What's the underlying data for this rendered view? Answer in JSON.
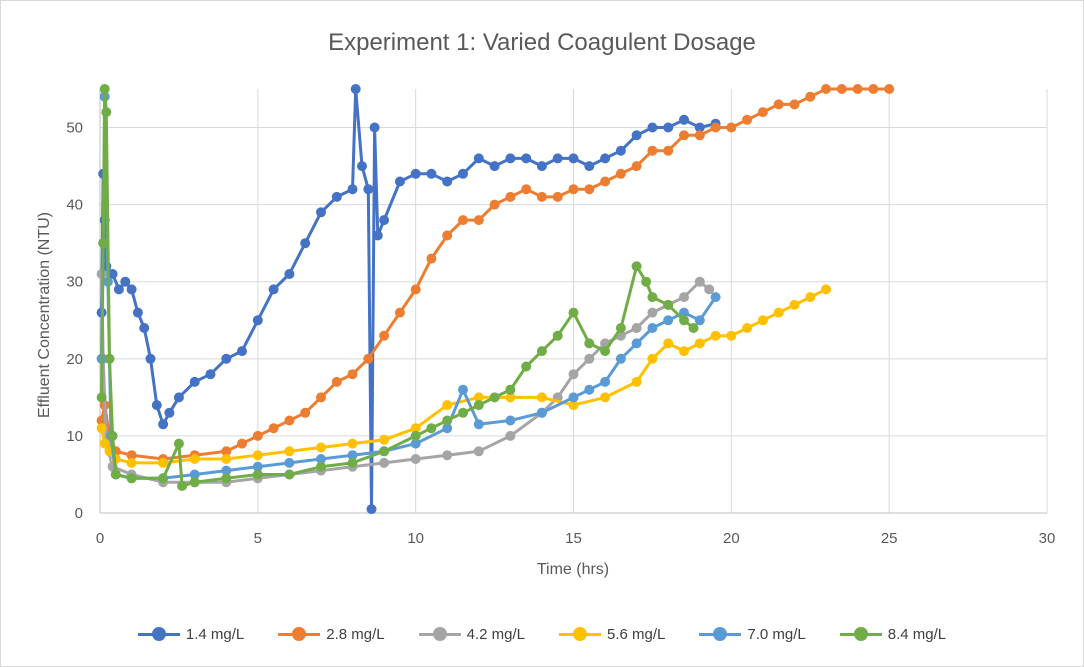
{
  "chart_data": {
    "type": "scatter",
    "title": "Experiment 1: Varied Coagulent Dosage",
    "xlabel": "Time (hrs)",
    "ylabel": "Effluent Concentration (NTU)",
    "xlim": [
      0,
      30
    ],
    "ylim": [
      0,
      55
    ],
    "xticks": [
      "0",
      "5",
      "10",
      "15",
      "20",
      "25",
      "30"
    ],
    "yticks": [
      "0",
      "10",
      "20",
      "30",
      "40",
      "50"
    ],
    "grid": true,
    "legend_position": "bottom",
    "series": [
      {
        "name": "1.4 mg/L",
        "color": "#4472C4",
        "points": [
          [
            0.05,
            26
          ],
          [
            0.1,
            44
          ],
          [
            0.15,
            38
          ],
          [
            0.2,
            32
          ],
          [
            0.4,
            31
          ],
          [
            0.6,
            29
          ],
          [
            0.8,
            30
          ],
          [
            1.0,
            29
          ],
          [
            1.2,
            26
          ],
          [
            1.4,
            24
          ],
          [
            1.6,
            20
          ],
          [
            1.8,
            14
          ],
          [
            2.0,
            11.5
          ],
          [
            2.2,
            13
          ],
          [
            2.5,
            15
          ],
          [
            3.0,
            17
          ],
          [
            3.5,
            18
          ],
          [
            4.0,
            20
          ],
          [
            4.5,
            21
          ],
          [
            5.0,
            25
          ],
          [
            5.5,
            29
          ],
          [
            6.0,
            31
          ],
          [
            6.5,
            35
          ],
          [
            7.0,
            39
          ],
          [
            7.5,
            41
          ],
          [
            8.0,
            42
          ],
          [
            8.1,
            55
          ],
          [
            8.3,
            45
          ],
          [
            8.5,
            42
          ],
          [
            8.6,
            0.5
          ],
          [
            8.7,
            50
          ],
          [
            8.8,
            36
          ],
          [
            9.0,
            38
          ],
          [
            9.5,
            43
          ],
          [
            10.0,
            44
          ],
          [
            10.5,
            44
          ],
          [
            11.0,
            43
          ],
          [
            11.5,
            44
          ],
          [
            12.0,
            46
          ],
          [
            12.5,
            45
          ],
          [
            13.0,
            46
          ],
          [
            13.5,
            46
          ],
          [
            14.0,
            45
          ],
          [
            14.5,
            46
          ],
          [
            15.0,
            46
          ],
          [
            15.5,
            45
          ],
          [
            16.0,
            46
          ],
          [
            16.5,
            47
          ],
          [
            17.0,
            49
          ],
          [
            17.5,
            50
          ],
          [
            18.0,
            50
          ],
          [
            18.5,
            51
          ],
          [
            19.0,
            50
          ],
          [
            19.5,
            50.5
          ]
        ]
      },
      {
        "name": "2.8 mg/L",
        "color": "#ED7D31",
        "points": [
          [
            0.05,
            12
          ],
          [
            0.15,
            14
          ],
          [
            0.3,
            10
          ],
          [
            0.5,
            8
          ],
          [
            1.0,
            7.5
          ],
          [
            2.0,
            7
          ],
          [
            3.0,
            7.5
          ],
          [
            4.0,
            8
          ],
          [
            4.5,
            9
          ],
          [
            5.0,
            10
          ],
          [
            5.5,
            11
          ],
          [
            6.0,
            12
          ],
          [
            6.5,
            13
          ],
          [
            7.0,
            15
          ],
          [
            7.5,
            17
          ],
          [
            8.0,
            18
          ],
          [
            8.5,
            20
          ],
          [
            9.0,
            23
          ],
          [
            9.5,
            26
          ],
          [
            10.0,
            29
          ],
          [
            10.5,
            33
          ],
          [
            11.0,
            36
          ],
          [
            11.5,
            38
          ],
          [
            12.0,
            38
          ],
          [
            12.5,
            40
          ],
          [
            13.0,
            41
          ],
          [
            13.5,
            42
          ],
          [
            14.0,
            41
          ],
          [
            14.5,
            41
          ],
          [
            15.0,
            42
          ],
          [
            15.5,
            42
          ],
          [
            16.0,
            43
          ],
          [
            16.5,
            44
          ],
          [
            17.0,
            45
          ],
          [
            17.5,
            47
          ],
          [
            18.0,
            47
          ],
          [
            18.5,
            49
          ],
          [
            19.0,
            49
          ],
          [
            19.5,
            50
          ],
          [
            20.0,
            50
          ],
          [
            20.5,
            51
          ],
          [
            21.0,
            52
          ],
          [
            21.5,
            53
          ],
          [
            22.0,
            53
          ],
          [
            22.5,
            54
          ],
          [
            23.0,
            55
          ],
          [
            23.5,
            55
          ],
          [
            24.0,
            55
          ],
          [
            24.5,
            55
          ],
          [
            25.0,
            55
          ]
        ]
      },
      {
        "name": "4.2 mg/L",
        "color": "#A5A5A5",
        "points": [
          [
            0.05,
            31
          ],
          [
            0.1,
            20
          ],
          [
            0.2,
            9
          ],
          [
            0.4,
            6
          ],
          [
            1.0,
            5
          ],
          [
            2.0,
            4
          ],
          [
            3.0,
            4
          ],
          [
            4.0,
            4
          ],
          [
            5.0,
            4.5
          ],
          [
            6.0,
            5
          ],
          [
            7.0,
            5.5
          ],
          [
            8.0,
            6
          ],
          [
            9.0,
            6.5
          ],
          [
            10.0,
            7
          ],
          [
            11.0,
            7.5
          ],
          [
            12.0,
            8
          ],
          [
            13.0,
            10
          ],
          [
            14.0,
            13
          ],
          [
            14.5,
            15
          ],
          [
            15.0,
            18
          ],
          [
            15.5,
            20
          ],
          [
            16.0,
            22
          ],
          [
            16.5,
            23
          ],
          [
            17.0,
            24
          ],
          [
            17.5,
            26
          ],
          [
            18.0,
            27
          ],
          [
            18.5,
            28
          ],
          [
            19.0,
            30
          ],
          [
            19.3,
            29
          ]
        ]
      },
      {
        "name": "5.6 mg/L",
        "color": "#FFC000",
        "points": [
          [
            0.05,
            11
          ],
          [
            0.15,
            9
          ],
          [
            0.3,
            8
          ],
          [
            0.5,
            7
          ],
          [
            1.0,
            6.5
          ],
          [
            2.0,
            6.5
          ],
          [
            3.0,
            7
          ],
          [
            4.0,
            7
          ],
          [
            5.0,
            7.5
          ],
          [
            6.0,
            8
          ],
          [
            7.0,
            8.5
          ],
          [
            8.0,
            9
          ],
          [
            9.0,
            9.5
          ],
          [
            10.0,
            11
          ],
          [
            11.0,
            14
          ],
          [
            12.0,
            15
          ],
          [
            13.0,
            15
          ],
          [
            14.0,
            15
          ],
          [
            15.0,
            14
          ],
          [
            16.0,
            15
          ],
          [
            17.0,
            17
          ],
          [
            17.5,
            20
          ],
          [
            18.0,
            22
          ],
          [
            18.5,
            21
          ],
          [
            19.0,
            22
          ],
          [
            19.5,
            23
          ],
          [
            20.0,
            23
          ],
          [
            20.5,
            24
          ],
          [
            21.0,
            25
          ],
          [
            21.5,
            26
          ],
          [
            22.0,
            27
          ],
          [
            22.5,
            28
          ],
          [
            23.0,
            29
          ]
        ]
      },
      {
        "name": "7.0 mg/L",
        "color": "#5B9BD5",
        "points": [
          [
            0.05,
            20
          ],
          [
            0.1,
            35
          ],
          [
            0.15,
            54
          ],
          [
            0.25,
            30
          ],
          [
            0.35,
            10
          ],
          [
            0.5,
            5
          ],
          [
            1.0,
            4.5
          ],
          [
            2.0,
            4.5
          ],
          [
            3.0,
            5
          ],
          [
            4.0,
            5.5
          ],
          [
            5.0,
            6
          ],
          [
            6.0,
            6.5
          ],
          [
            7.0,
            7
          ],
          [
            8.0,
            7.5
          ],
          [
            9.0,
            8
          ],
          [
            10.0,
            9
          ],
          [
            11.0,
            11
          ],
          [
            11.5,
            16
          ],
          [
            12.0,
            11.5
          ],
          [
            13.0,
            12
          ],
          [
            14.0,
            13
          ],
          [
            15.0,
            15
          ],
          [
            15.5,
            16
          ],
          [
            16.0,
            17
          ],
          [
            16.5,
            20
          ],
          [
            17.0,
            22
          ],
          [
            17.5,
            24
          ],
          [
            18.0,
            25
          ],
          [
            18.5,
            26
          ],
          [
            19.0,
            25
          ],
          [
            19.5,
            28
          ]
        ]
      },
      {
        "name": "8.4 mg/L",
        "color": "#70AD47",
        "points": [
          [
            0.05,
            15
          ],
          [
            0.1,
            35
          ],
          [
            0.15,
            55
          ],
          [
            0.2,
            52
          ],
          [
            0.3,
            20
          ],
          [
            0.4,
            10
          ],
          [
            0.5,
            5
          ],
          [
            1.0,
            4.5
          ],
          [
            2.0,
            4.5
          ],
          [
            2.5,
            9
          ],
          [
            2.6,
            3.5
          ],
          [
            3.0,
            4
          ],
          [
            4.0,
            4.5
          ],
          [
            5.0,
            5
          ],
          [
            6.0,
            5
          ],
          [
            7.0,
            6
          ],
          [
            8.0,
            6.5
          ],
          [
            9.0,
            8
          ],
          [
            10.0,
            10
          ],
          [
            10.5,
            11
          ],
          [
            11.0,
            12
          ],
          [
            11.5,
            13
          ],
          [
            12.0,
            14
          ],
          [
            12.5,
            15
          ],
          [
            13.0,
            16
          ],
          [
            13.5,
            19
          ],
          [
            14.0,
            21
          ],
          [
            14.5,
            23
          ],
          [
            15.0,
            26
          ],
          [
            15.5,
            22
          ],
          [
            16.0,
            21
          ],
          [
            16.5,
            24
          ],
          [
            17.0,
            32
          ],
          [
            17.3,
            30
          ],
          [
            17.5,
            28
          ],
          [
            18.0,
            27
          ],
          [
            18.5,
            25
          ],
          [
            18.8,
            24
          ]
        ]
      }
    ]
  }
}
